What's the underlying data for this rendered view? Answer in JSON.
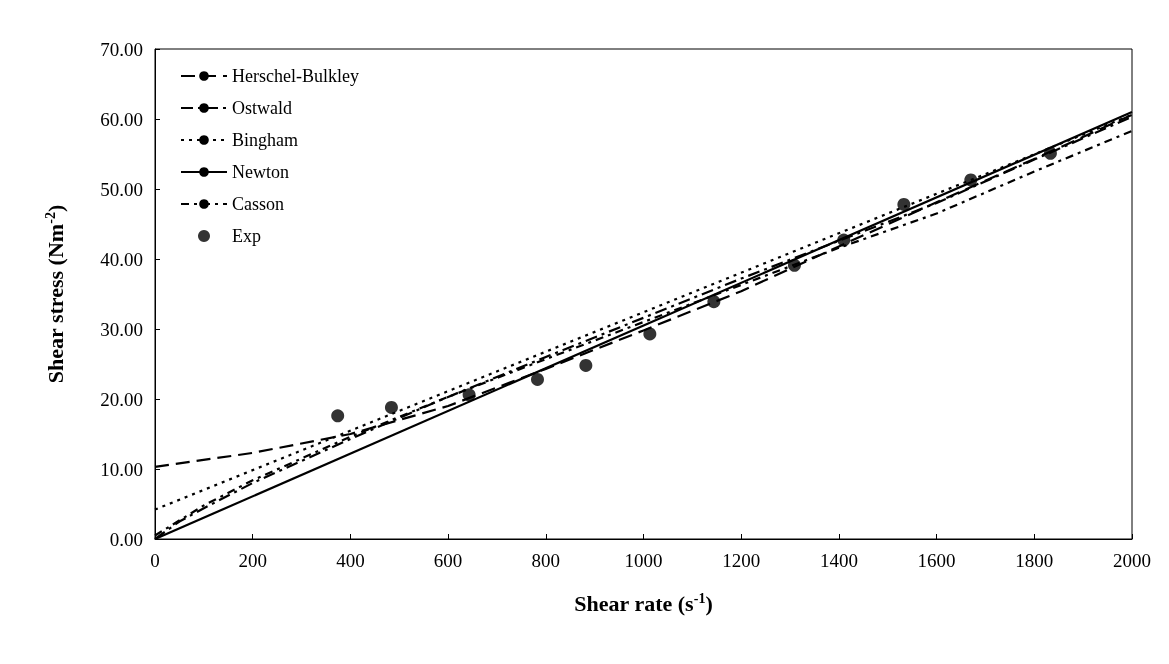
{
  "chart_data": {
    "type": "line",
    "xlabel": "Shear rate (s$^{-1}$)",
    "ylabel": "Shear stress (Nm$^{-2}$)",
    "xlim": [
      0,
      2000
    ],
    "xticks": [
      0,
      200,
      400,
      600,
      800,
      1000,
      1200,
      1400,
      1600,
      1800,
      2000
    ],
    "ylim": [
      0,
      70
    ],
    "yticks": [
      {
        "value": 0,
        "label": "0.00"
      },
      {
        "value": 10,
        "label": "10.00"
      },
      {
        "value": 20,
        "label": "20.00"
      },
      {
        "value": 30,
        "label": "30.00"
      },
      {
        "value": 40,
        "label": "40.00"
      },
      {
        "value": 50,
        "label": "50.00"
      },
      {
        "value": 60,
        "label": "60.00"
      },
      {
        "value": 70,
        "label": "70.00"
      }
    ],
    "grid": false,
    "legend": "top left",
    "series": [
      {
        "name": "Herschel-Bulkley",
        "color": "#000000",
        "line_style": "dashed",
        "marker": "none",
        "x": [
          0,
          200,
          400,
          600,
          800,
          1000,
          1200,
          1400,
          1600,
          1800,
          2000
        ],
        "values": [
          10.3,
          12.3,
          15.0,
          19.0,
          24.3,
          29.8,
          35.4,
          41.8,
          48.1,
          54.3,
          60.6
        ]
      },
      {
        "name": "Ostwald",
        "color": "#000000",
        "line_style": "dashed",
        "marker": "none",
        "x": [
          0,
          50,
          100,
          200,
          400,
          600,
          800,
          1000,
          1200,
          1400,
          1600,
          1800,
          2000
        ],
        "values": [
          0,
          2.5,
          4.4,
          8.0,
          14.3,
          20.3,
          26.0,
          31.6,
          37.2,
          42.6,
          48.0,
          54.2,
          60.3
        ]
      },
      {
        "name": "Bingham",
        "color": "#000000",
        "line_style": "dotted",
        "marker": "none",
        "x": [
          0,
          2000
        ],
        "values": [
          4.2,
          60.6
        ]
      },
      {
        "name": "Newton",
        "color": "#000000",
        "line_style": "solid",
        "marker": "none",
        "x": [
          0,
          2000
        ],
        "values": [
          0,
          61.0
        ]
      },
      {
        "name": "Casson",
        "color": "#000000",
        "line_style": "dashed",
        "marker": "none",
        "x": [
          0,
          100,
          200,
          400,
          600,
          800,
          1000,
          1200,
          1400,
          1600,
          1800,
          2000
        ],
        "values": [
          0.5,
          4.8,
          8.4,
          14.6,
          20.3,
          25.7,
          31.0,
          36.3,
          41.6,
          46.5,
          52.5,
          58.3
        ]
      },
      {
        "name": "Exp",
        "type": "scatter",
        "color": "#000000",
        "marker": "circle",
        "x": [
          374,
          484,
          643,
          783,
          882,
          1013,
          1144,
          1309,
          1410,
          1533,
          1670,
          1833
        ],
        "values": [
          17.6,
          18.8,
          20.6,
          22.8,
          24.8,
          29.3,
          33.9,
          39.1,
          42.7,
          47.8,
          51.3,
          55.1
        ]
      }
    ]
  }
}
